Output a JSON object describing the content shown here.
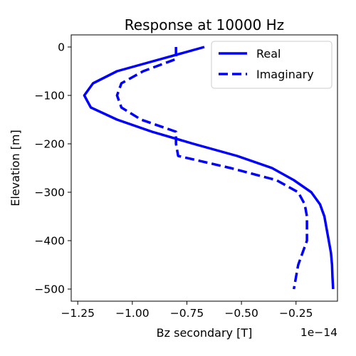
{
  "chart_data": {
    "type": "line",
    "title": "Response at 10000 Hz",
    "xlabel": "Bz secondary [T]",
    "ylabel": "Elevation [m]",
    "x_offset_label": "1e−14",
    "x_multiplier_exponent": -14,
    "xlim": [
      -1.28,
      -0.06
    ],
    "ylim": [
      -525,
      25
    ],
    "x_ticks": [
      -1.25,
      -1.0,
      -0.75,
      -0.5,
      -0.25
    ],
    "x_tick_labels": [
      "−1.25",
      "−1.00",
      "−0.75",
      "−0.50",
      "−0.25"
    ],
    "y_ticks": [
      0,
      -100,
      -200,
      -300,
      -400,
      -500
    ],
    "y_tick_labels": [
      "0",
      "−100",
      "−200",
      "−300",
      "−400",
      "−500"
    ],
    "grid": false,
    "legend_position": "top-right",
    "series": [
      {
        "name": "Real",
        "style": "solid",
        "color": "#0000ff",
        "points": [
          [
            -0.67,
            0
          ],
          [
            -0.87,
            -25
          ],
          [
            -1.07,
            -50
          ],
          [
            -1.18,
            -75
          ],
          [
            -1.22,
            -100
          ],
          [
            -1.19,
            -125
          ],
          [
            -1.07,
            -150
          ],
          [
            -0.91,
            -175
          ],
          [
            -0.72,
            -200
          ],
          [
            -0.52,
            -225
          ],
          [
            -0.36,
            -250
          ],
          [
            -0.26,
            -275
          ],
          [
            -0.18,
            -300
          ],
          [
            -0.14,
            -325
          ],
          [
            -0.12,
            -350
          ],
          [
            -0.11,
            -375
          ],
          [
            -0.1,
            -400
          ],
          [
            -0.09,
            -425
          ],
          [
            -0.085,
            -450
          ],
          [
            -0.083,
            -475
          ],
          [
            -0.08,
            -500
          ]
        ]
      },
      {
        "name": "Imaginary",
        "style": "dashed",
        "color": "#0000ff",
        "points": [
          [
            -0.8,
            0
          ],
          [
            -0.8,
            -25
          ],
          [
            -0.95,
            -50
          ],
          [
            -1.05,
            -75
          ],
          [
            -1.07,
            -100
          ],
          [
            -1.05,
            -125
          ],
          [
            -0.96,
            -150
          ],
          [
            -0.8,
            -175
          ],
          [
            -0.8,
            -200
          ],
          [
            -0.79,
            -225
          ],
          [
            -0.55,
            -250
          ],
          [
            -0.34,
            -275
          ],
          [
            -0.24,
            -300
          ],
          [
            -0.21,
            -325
          ],
          [
            -0.2,
            -350
          ],
          [
            -0.2,
            -375
          ],
          [
            -0.2,
            -400
          ],
          [
            -0.22,
            -425
          ],
          [
            -0.24,
            -450
          ],
          [
            -0.25,
            -475
          ],
          [
            -0.26,
            -500
          ]
        ]
      }
    ]
  }
}
